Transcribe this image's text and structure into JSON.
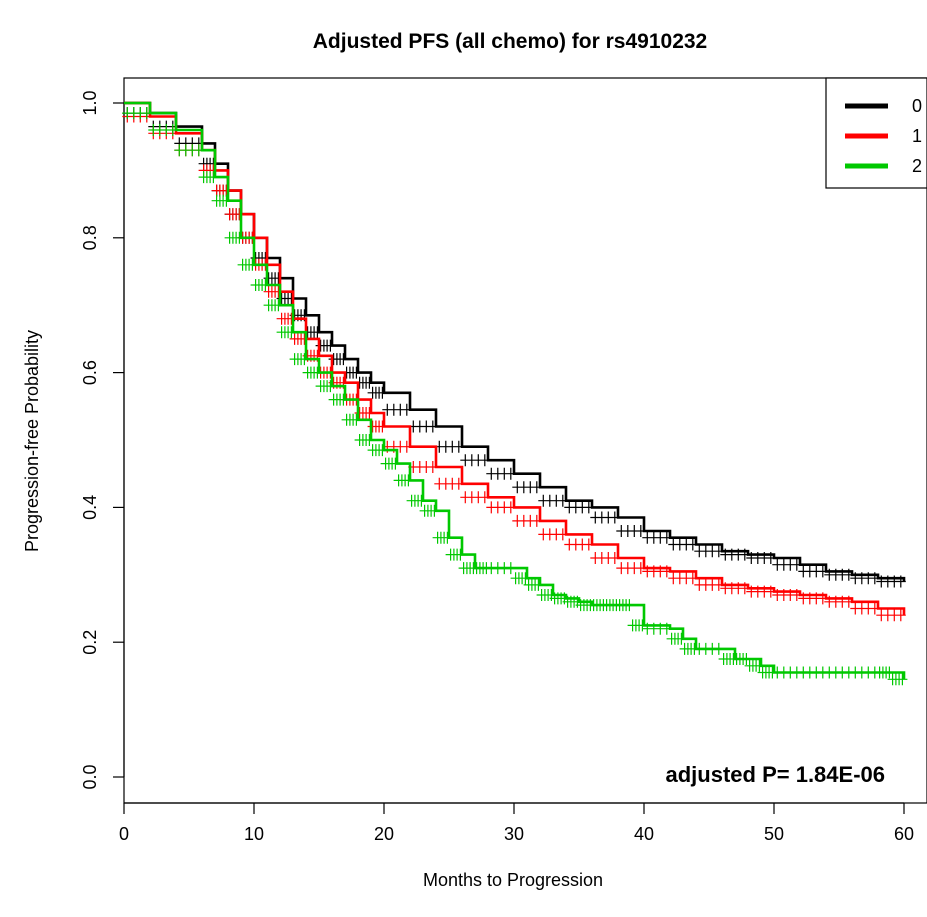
{
  "chart_data": {
    "type": "line",
    "title": "Adjusted PFS (all chemo) for rs4910232",
    "xlabel": "Months to Progression",
    "ylabel": "Progression-free Probability",
    "xlim": [
      0,
      60
    ],
    "ylim": [
      0,
      1
    ],
    "xticks": [
      0,
      10,
      20,
      30,
      40,
      50,
      60
    ],
    "yticks": [
      0.0,
      0.2,
      0.4,
      0.6,
      0.8,
      1.0
    ],
    "grid": false,
    "legend_position": "top-right",
    "annotation": "adjusted P= 1.84E-06",
    "series": [
      {
        "name": "0",
        "color": "#000000",
        "x": [
          0,
          2,
          4,
          6,
          7,
          8,
          9,
          10,
          11,
          12,
          13,
          14,
          15,
          16,
          17,
          18,
          19,
          20,
          22,
          24,
          26,
          28,
          30,
          32,
          34,
          36,
          38,
          40,
          42,
          44,
          46,
          48,
          50,
          52,
          54,
          56,
          58,
          60
        ],
        "y": [
          1.0,
          0.985,
          0.965,
          0.94,
          0.91,
          0.87,
          0.835,
          0.8,
          0.77,
          0.74,
          0.71,
          0.685,
          0.66,
          0.64,
          0.62,
          0.6,
          0.585,
          0.57,
          0.545,
          0.52,
          0.49,
          0.47,
          0.45,
          0.43,
          0.41,
          0.4,
          0.385,
          0.365,
          0.355,
          0.345,
          0.335,
          0.33,
          0.325,
          0.315,
          0.305,
          0.3,
          0.295,
          0.29
        ]
      },
      {
        "name": "1",
        "color": "#ff0000",
        "x": [
          0,
          2,
          4,
          6,
          7,
          8,
          9,
          10,
          11,
          12,
          13,
          14,
          15,
          16,
          17,
          18,
          19,
          20,
          22,
          24,
          26,
          28,
          30,
          32,
          34,
          36,
          38,
          40,
          42,
          44,
          46,
          48,
          50,
          52,
          54,
          56,
          58,
          60
        ],
        "y": [
          1.0,
          0.98,
          0.955,
          0.93,
          0.9,
          0.87,
          0.835,
          0.8,
          0.76,
          0.72,
          0.68,
          0.65,
          0.625,
          0.6,
          0.585,
          0.56,
          0.54,
          0.52,
          0.49,
          0.46,
          0.435,
          0.415,
          0.4,
          0.38,
          0.36,
          0.345,
          0.325,
          0.31,
          0.305,
          0.295,
          0.285,
          0.28,
          0.275,
          0.27,
          0.265,
          0.26,
          0.25,
          0.24
        ]
      },
      {
        "name": "2",
        "color": "#00c800",
        "x": [
          0,
          2,
          4,
          6,
          7,
          8,
          9,
          10,
          11,
          12,
          13,
          14,
          15,
          16,
          17,
          18,
          19,
          20,
          21,
          22,
          23,
          24,
          25,
          26,
          27,
          28,
          30,
          31,
          32,
          33,
          34,
          35,
          36,
          37,
          38,
          39,
          40,
          42,
          43,
          44,
          46,
          47,
          48,
          49,
          50,
          52,
          54,
          56,
          58,
          59,
          60
        ],
        "y": [
          1.0,
          0.985,
          0.96,
          0.93,
          0.89,
          0.855,
          0.8,
          0.76,
          0.73,
          0.7,
          0.66,
          0.62,
          0.6,
          0.58,
          0.56,
          0.53,
          0.5,
          0.485,
          0.465,
          0.44,
          0.41,
          0.395,
          0.355,
          0.33,
          0.31,
          0.31,
          0.31,
          0.295,
          0.285,
          0.27,
          0.265,
          0.26,
          0.255,
          0.255,
          0.255,
          0.255,
          0.225,
          0.22,
          0.205,
          0.19,
          0.19,
          0.175,
          0.175,
          0.165,
          0.155,
          0.155,
          0.155,
          0.155,
          0.155,
          0.155,
          0.145
        ]
      }
    ]
  }
}
